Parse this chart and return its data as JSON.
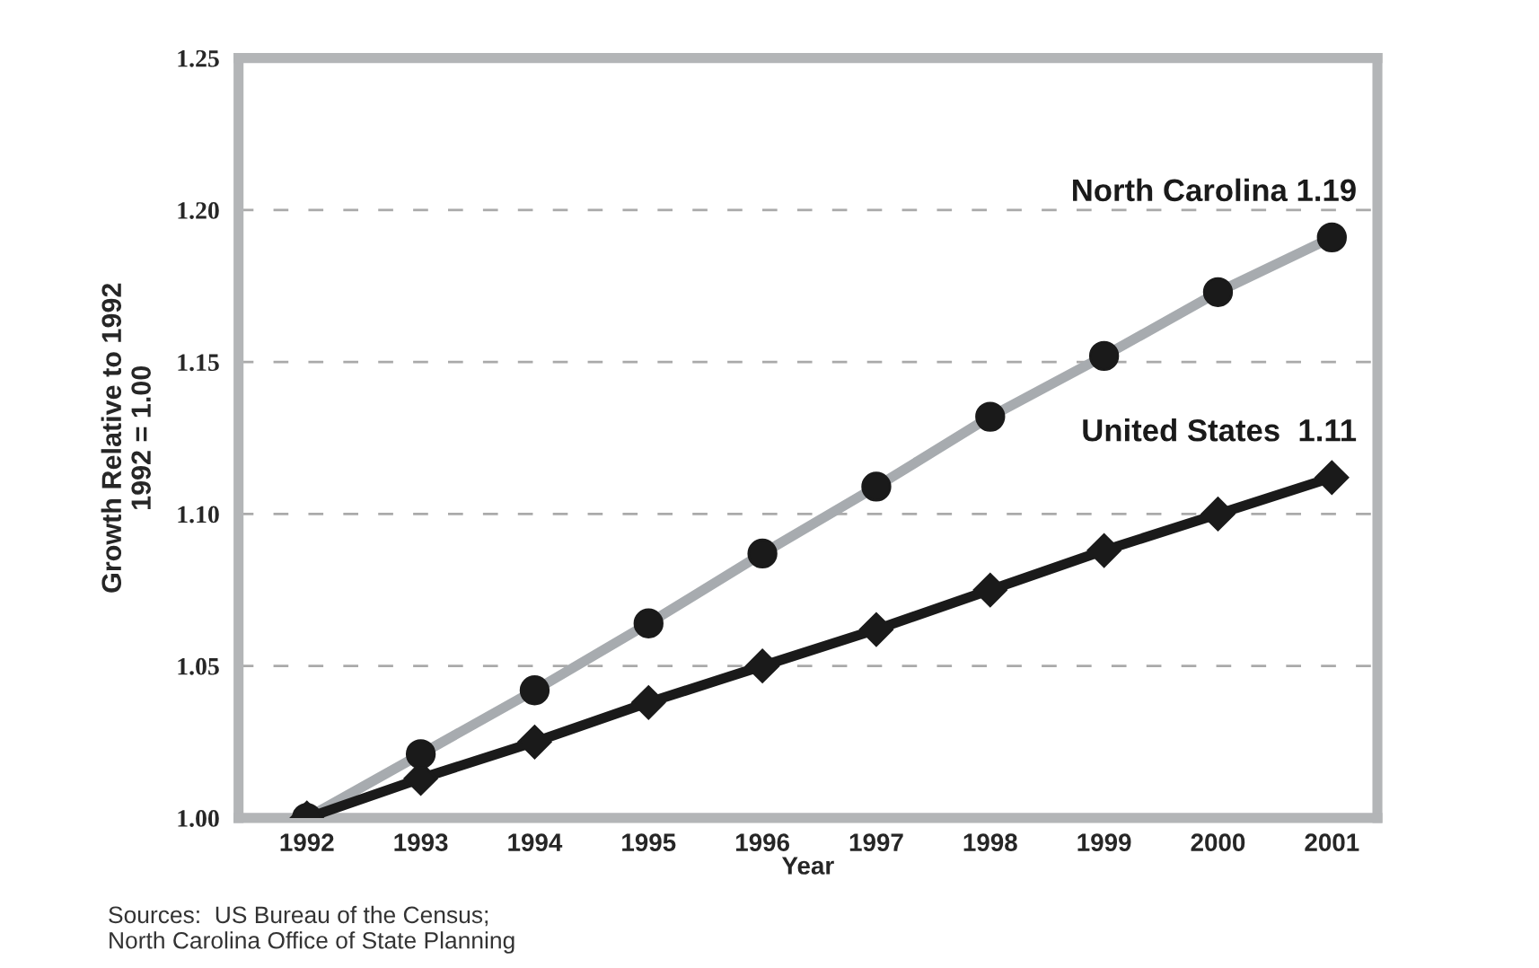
{
  "chart_data": {
    "type": "line",
    "xlabel": "Year",
    "ylabel": "Growth Relative to 1992\n1992 = 1.00",
    "categories": [
      "1992",
      "1993",
      "1994",
      "1995",
      "1996",
      "1997",
      "1998",
      "1999",
      "2000",
      "2001"
    ],
    "series": [
      {
        "color": "#a7abaf",
        "marker": "circle",
        "values": [
          1.0,
          1.021,
          1.042,
          1.064,
          1.087,
          1.109,
          1.132,
          1.152,
          1.173,
          1.191
        ]
      },
      {
        "color": "#1a1a1a",
        "marker": "diamond",
        "values": [
          1.0,
          1.013,
          1.025,
          1.038,
          1.05,
          1.062,
          1.075,
          1.088,
          1.1,
          1.112
        ]
      }
    ],
    "ylim": [
      1.0,
      1.25
    ],
    "yticks": [
      {
        "value": 1.0,
        "label": "1.00"
      },
      {
        "value": 1.05,
        "label": "1.05"
      },
      {
        "value": 1.1,
        "label": "1.10"
      },
      {
        "value": 1.15,
        "label": "1.15"
      },
      {
        "value": 1.2,
        "label": "1.20"
      },
      {
        "value": 1.25,
        "label": "1.25"
      }
    ],
    "grid": "y",
    "line_style": "solid",
    "annotations": [
      {
        "text": "North Carolina 1.19",
        "x": "2001",
        "y": 1.191
      },
      {
        "text": "United States  1.11",
        "x": "2001",
        "y": 1.112
      },
      "Sources:  US Bureau of the Census;\nNorth Carolina Office of State Planning"
    ]
  }
}
